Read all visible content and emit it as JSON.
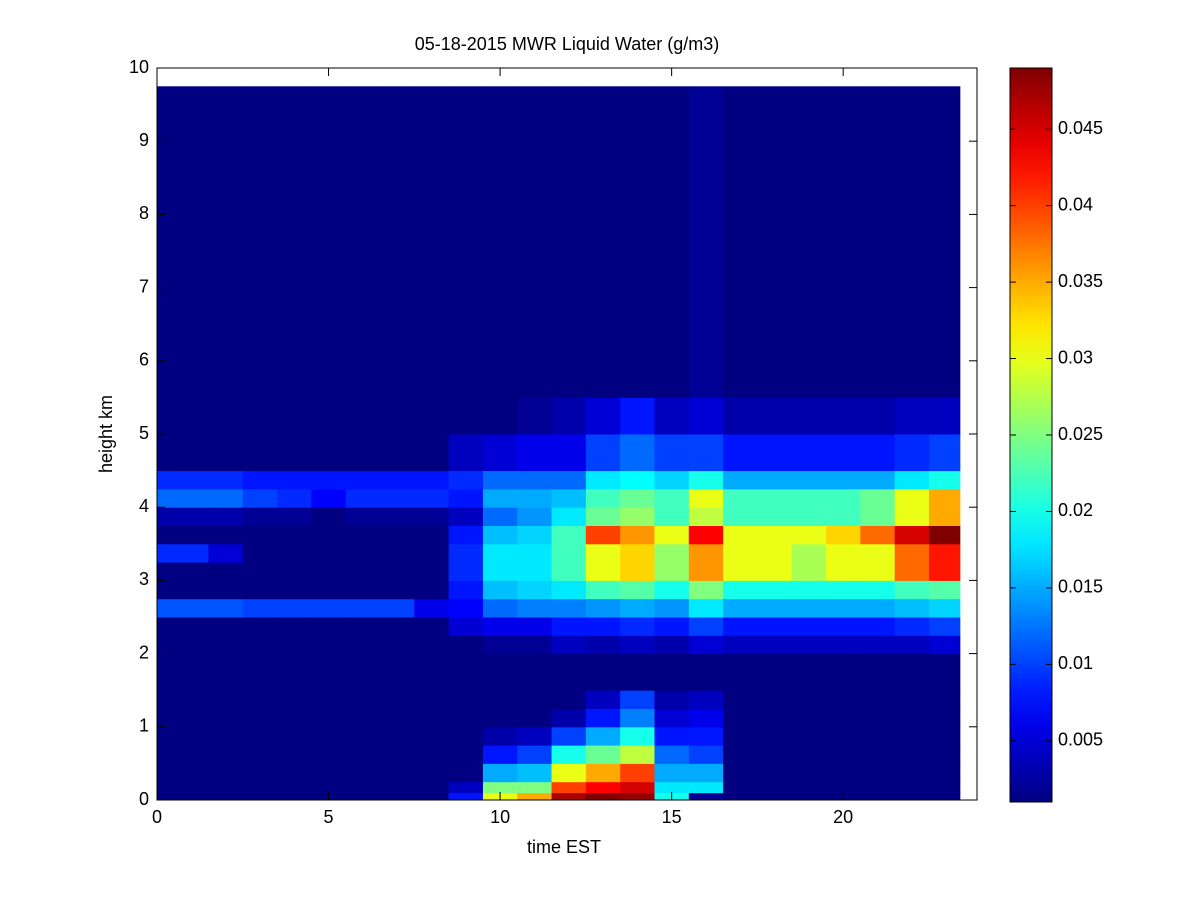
{
  "chart_data": {
    "type": "heatmap",
    "title": "05-18-2015 MWR Liquid Water (g/m3)",
    "xlabel": "time EST",
    "ylabel": "height km",
    "xlim": [
      0,
      23.9
    ],
    "xticks": [
      0,
      5,
      10,
      15,
      20
    ],
    "ylim": [
      0,
      10
    ],
    "yticks": [
      0,
      1,
      2,
      3,
      4,
      5,
      6,
      7,
      8,
      9,
      10
    ],
    "x_bins": [
      0,
      0.5,
      1.5,
      2.5,
      3.5,
      4.5,
      5.5,
      6.5,
      7.5,
      8.5,
      9.5,
      10.5,
      11.5,
      12.5,
      13.5,
      14.5,
      15.5,
      16.5,
      17.5,
      18.5,
      19.5,
      20.5,
      21.5,
      22.5,
      23.4
    ],
    "y_bins": [
      0,
      0.1,
      0.25,
      0.5,
      0.75,
      1.0,
      1.25,
      1.5,
      2.0,
      2.25,
      2.5,
      2.75,
      3.0,
      3.25,
      3.5,
      3.75,
      4.0,
      4.25,
      4.5,
      5.0,
      5.5,
      9.75
    ],
    "clim": [
      0.001,
      0.049
    ],
    "cticks": [
      0.005,
      0.01,
      0.015,
      0.02,
      0.025,
      0.03,
      0.035,
      0.04,
      0.045
    ],
    "colormap": "jet",
    "z": [
      [
        0.001,
        0.001,
        0.001,
        0.001,
        0.001,
        0.001,
        0.001,
        0.001,
        0.001,
        0.001,
        0.011,
        0.001,
        0.001,
        0.009,
        0.001,
        0.003,
        0.012,
        0.009,
        0.001,
        0.001,
        0.001
      ],
      [
        0.001,
        0.001,
        0.001,
        0.001,
        0.001,
        0.001,
        0.001,
        0.001,
        0.001,
        0.001,
        0.011,
        0.001,
        0.001,
        0.009,
        0.001,
        0.003,
        0.012,
        0.009,
        0.001,
        0.001,
        0.001
      ],
      [
        0.001,
        0.001,
        0.001,
        0.001,
        0.001,
        0.001,
        0.001,
        0.001,
        0.001,
        0.001,
        0.011,
        0.001,
        0.001,
        0.005,
        0.001,
        0.003,
        0.012,
        0.009,
        0.001,
        0.001,
        0.001
      ],
      [
        0.001,
        0.001,
        0.001,
        0.001,
        0.001,
        0.001,
        0.001,
        0.001,
        0.001,
        0.001,
        0.01,
        0.001,
        0.001,
        0.001,
        0.001,
        0.002,
        0.01,
        0.008,
        0.001,
        0.001,
        0.001
      ],
      [
        0.001,
        0.001,
        0.001,
        0.001,
        0.001,
        0.001,
        0.001,
        0.001,
        0.001,
        0.001,
        0.01,
        0.001,
        0.001,
        0.001,
        0.001,
        0.002,
        0.009,
        0.008,
        0.001,
        0.001,
        0.001
      ],
      [
        0.001,
        0.001,
        0.001,
        0.001,
        0.001,
        0.001,
        0.001,
        0.001,
        0.001,
        0.001,
        0.01,
        0.001,
        0.001,
        0.001,
        0.001,
        0.001,
        0.007,
        0.008,
        0.001,
        0.001,
        0.001
      ],
      [
        0.001,
        0.001,
        0.001,
        0.001,
        0.001,
        0.001,
        0.001,
        0.001,
        0.001,
        0.001,
        0.01,
        0.001,
        0.001,
        0.001,
        0.001,
        0.002,
        0.009,
        0.008,
        0.001,
        0.001,
        0.001
      ],
      [
        0.001,
        0.001,
        0.001,
        0.001,
        0.001,
        0.001,
        0.001,
        0.001,
        0.001,
        0.001,
        0.01,
        0.001,
        0.001,
        0.001,
        0.001,
        0.002,
        0.009,
        0.008,
        0.001,
        0.001,
        0.001
      ],
      [
        0.001,
        0.001,
        0.001,
        0.001,
        0.001,
        0.001,
        0.001,
        0.001,
        0.001,
        0.001,
        0.006,
        0.001,
        0.001,
        0.001,
        0.001,
        0.002,
        0.009,
        0.008,
        0.001,
        0.001,
        0.001
      ],
      [
        0.008,
        0.004,
        0.001,
        0.001,
        0.001,
        0.001,
        0.001,
        0.001,
        0.001,
        0.005,
        0.007,
        0.008,
        0.009,
        0.009,
        0.008,
        0.004,
        0.008,
        0.009,
        0.004,
        0.001,
        0.001
      ],
      [
        0.03,
        0.025,
        0.015,
        0.008,
        0.003,
        0.001,
        0.001,
        0.001,
        0.002,
        0.006,
        0.012,
        0.016,
        0.018,
        0.018,
        0.016,
        0.012,
        0.015,
        0.012,
        0.005,
        0.001,
        0.001
      ],
      [
        0.035,
        0.025,
        0.016,
        0.01,
        0.004,
        0.001,
        0.001,
        0.001,
        0.002,
        0.006,
        0.013,
        0.017,
        0.018,
        0.018,
        0.017,
        0.014,
        0.015,
        0.012,
        0.006,
        0.002,
        0.001
      ],
      [
        0.047,
        0.04,
        0.03,
        0.02,
        0.01,
        0.003,
        0.001,
        0.001,
        0.004,
        0.008,
        0.013,
        0.018,
        0.022,
        0.022,
        0.022,
        0.018,
        0.016,
        0.012,
        0.006,
        0.003,
        0.001
      ],
      [
        0.049,
        0.043,
        0.035,
        0.024,
        0.015,
        0.008,
        0.004,
        0.001,
        0.003,
        0.008,
        0.014,
        0.022,
        0.03,
        0.03,
        0.04,
        0.024,
        0.022,
        0.018,
        0.01,
        0.005,
        0.001
      ],
      [
        0.048,
        0.045,
        0.04,
        0.028,
        0.02,
        0.013,
        0.01,
        0.001,
        0.004,
        0.009,
        0.015,
        0.023,
        0.033,
        0.033,
        0.036,
        0.026,
        0.024,
        0.019,
        0.012,
        0.008,
        0.001
      ],
      [
        0.02,
        0.018,
        0.015,
        0.012,
        0.008,
        0.005,
        0.003,
        0.001,
        0.003,
        0.008,
        0.014,
        0.02,
        0.026,
        0.026,
        0.03,
        0.022,
        0.022,
        0.017,
        0.01,
        0.004,
        0.001
      ],
      [
        0.002,
        0.018,
        0.015,
        0.01,
        0.008,
        0.006,
        0.004,
        0.001,
        0.005,
        0.01,
        0.018,
        0.025,
        0.036,
        0.036,
        0.043,
        0.028,
        0.03,
        0.02,
        0.01,
        0.005,
        0.002
      ],
      [
        0.001,
        0.001,
        0.001,
        0.001,
        0.001,
        0.001,
        0.001,
        0.001,
        0.004,
        0.008,
        0.015,
        0.02,
        0.03,
        0.03,
        0.03,
        0.022,
        0.022,
        0.015,
        0.008,
        0.003,
        0.001
      ],
      [
        0.001,
        0.001,
        0.001,
        0.001,
        0.001,
        0.001,
        0.001,
        0.001,
        0.004,
        0.008,
        0.015,
        0.02,
        0.03,
        0.03,
        0.03,
        0.022,
        0.022,
        0.015,
        0.008,
        0.003,
        0.001
      ],
      [
        0.001,
        0.001,
        0.001,
        0.001,
        0.001,
        0.001,
        0.001,
        0.001,
        0.004,
        0.008,
        0.015,
        0.02,
        0.027,
        0.027,
        0.03,
        0.022,
        0.022,
        0.015,
        0.008,
        0.003,
        0.001
      ],
      [
        0.001,
        0.001,
        0.001,
        0.001,
        0.001,
        0.001,
        0.001,
        0.001,
        0.004,
        0.008,
        0.015,
        0.02,
        0.03,
        0.03,
        0.033,
        0.022,
        0.022,
        0.015,
        0.008,
        0.003,
        0.001
      ],
      [
        0.001,
        0.001,
        0.001,
        0.001,
        0.001,
        0.001,
        0.001,
        0.001,
        0.004,
        0.008,
        0.015,
        0.02,
        0.03,
        0.03,
        0.038,
        0.024,
        0.024,
        0.015,
        0.008,
        0.003,
        0.001
      ],
      [
        0.001,
        0.001,
        0.001,
        0.001,
        0.001,
        0.001,
        0.001,
        0.001,
        0.004,
        0.009,
        0.016,
        0.022,
        0.038,
        0.038,
        0.045,
        0.03,
        0.03,
        0.018,
        0.009,
        0.004,
        0.001
      ],
      [
        0.001,
        0.001,
        0.001,
        0.001,
        0.001,
        0.001,
        0.001,
        0.001,
        0.005,
        0.01,
        0.017,
        0.023,
        0.042,
        0.042,
        0.049,
        0.035,
        0.035,
        0.02,
        0.01,
        0.004,
        0.001
      ]
    ]
  }
}
